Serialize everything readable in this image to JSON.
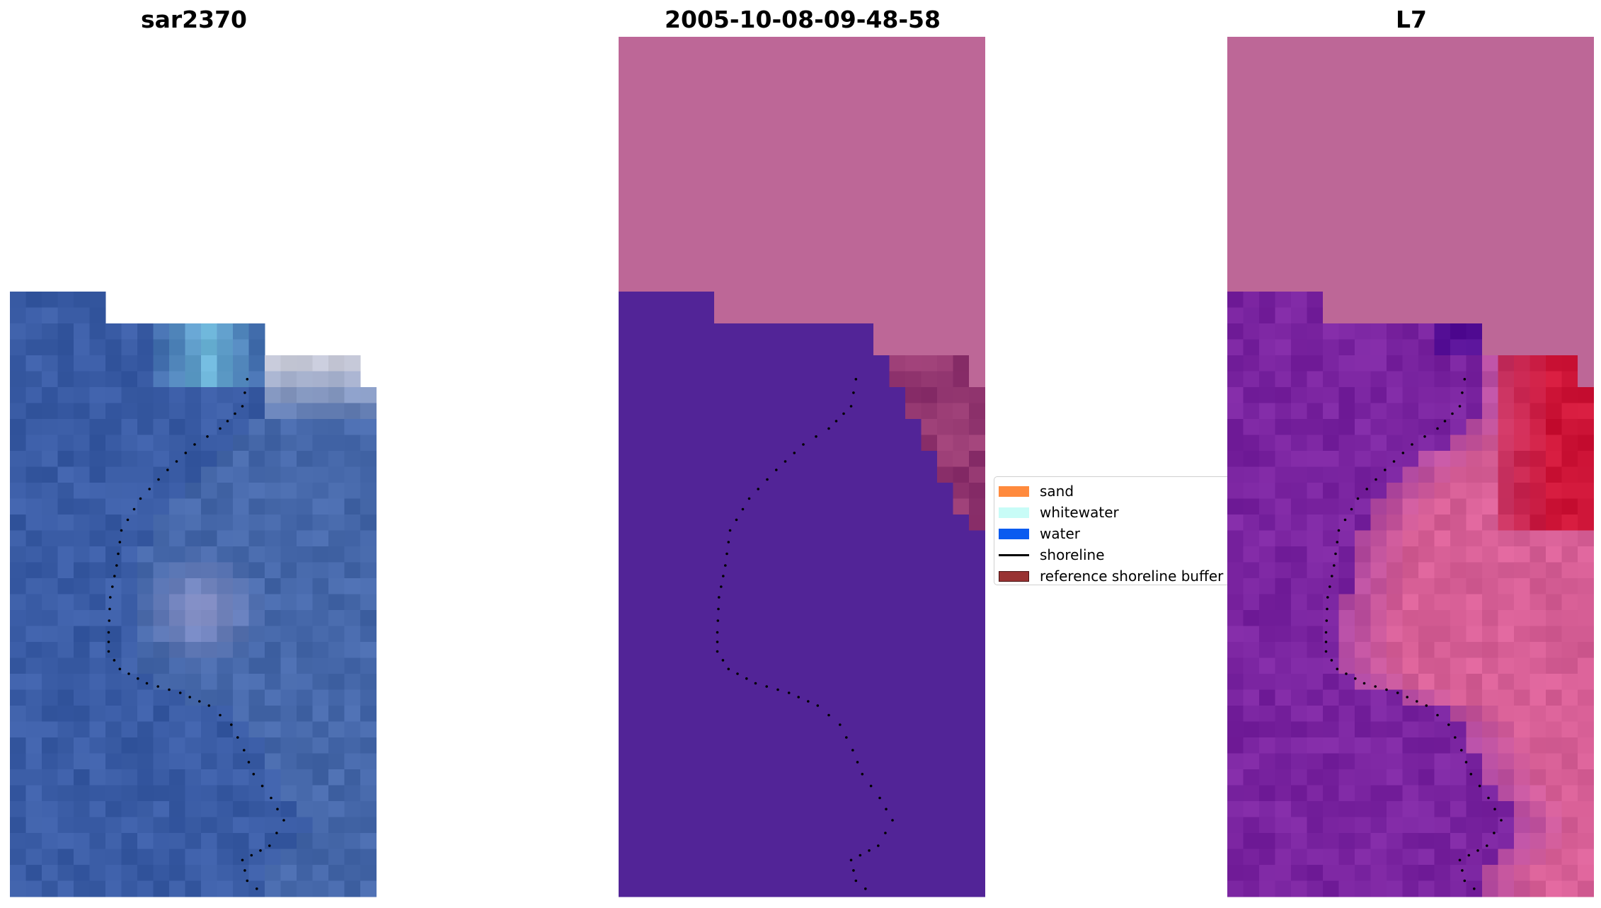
{
  "panels": [
    {
      "title": "sar2370",
      "kind": "rgb"
    },
    {
      "title": "2005-10-08-09-48-58",
      "kind": "classified"
    },
    {
      "title": "L7",
      "kind": "ndwi"
    }
  ],
  "legend": {
    "items": [
      {
        "label": "sand",
        "color": "#ff8a3d"
      },
      {
        "label": "whitewater",
        "color": "#c8fcf7"
      },
      {
        "label": "water",
        "color": "#0a5bf0"
      },
      {
        "label": "shoreline",
        "color": "#000000"
      },
      {
        "label": "reference shoreline buffer",
        "color": "#993333"
      }
    ]
  },
  "colors": {
    "no_data": "#bd6797",
    "classified_water": "#522497",
    "shoreline_points": "#000000"
  }
}
